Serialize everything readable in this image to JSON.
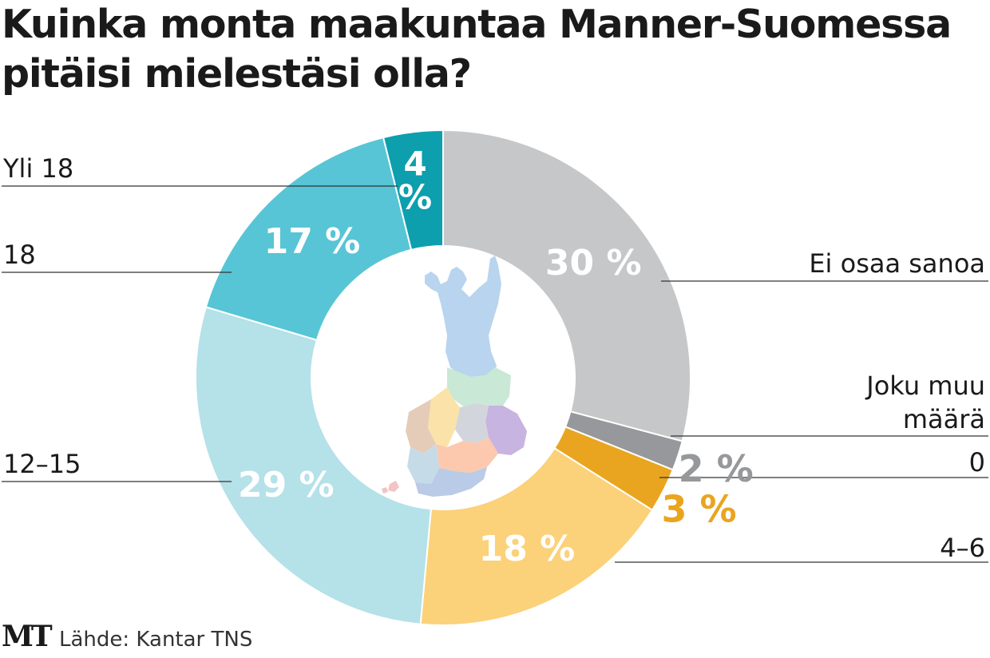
{
  "chart_data": {
    "type": "pie",
    "style": "donut",
    "title": "Kuinka monta maakuntaa Manner-Suomessa pitäisi mielestäsi olla?",
    "unit": "%",
    "slices": [
      {
        "category": "Ei osaa sanoa",
        "value": 30,
        "label": "30 %",
        "color": "#c6c7c9",
        "label_color": "#ffffff"
      },
      {
        "category": "Joku muu määrä",
        "value": 2,
        "label": "2 %",
        "color": "#96989b",
        "label_color": "#96989b"
      },
      {
        "category": "0",
        "value": 3,
        "label": "3 %",
        "color": "#e9a520",
        "label_color": "#e9a520"
      },
      {
        "category": "4–6",
        "value": 18,
        "label": "18 %",
        "color": "#fbd17a",
        "label_color": "#ffffff"
      },
      {
        "category": "12–15",
        "value": 29,
        "label": "29 %",
        "color": "#b5e1e9",
        "label_color": "#ffffff"
      },
      {
        "category": "18",
        "value": 17,
        "label": "17 %",
        "color": "#57c5d5",
        "label_color": "#ffffff"
      },
      {
        "category": "Yli 18",
        "value": 4,
        "label": "4 %",
        "color": "#0d9fae",
        "label_color": "#ffffff"
      }
    ],
    "center_image": "finland-regions-map",
    "legend": "leader-lines"
  },
  "footer": {
    "logo": "MT",
    "source": "Lähde: Kantar TNS"
  }
}
